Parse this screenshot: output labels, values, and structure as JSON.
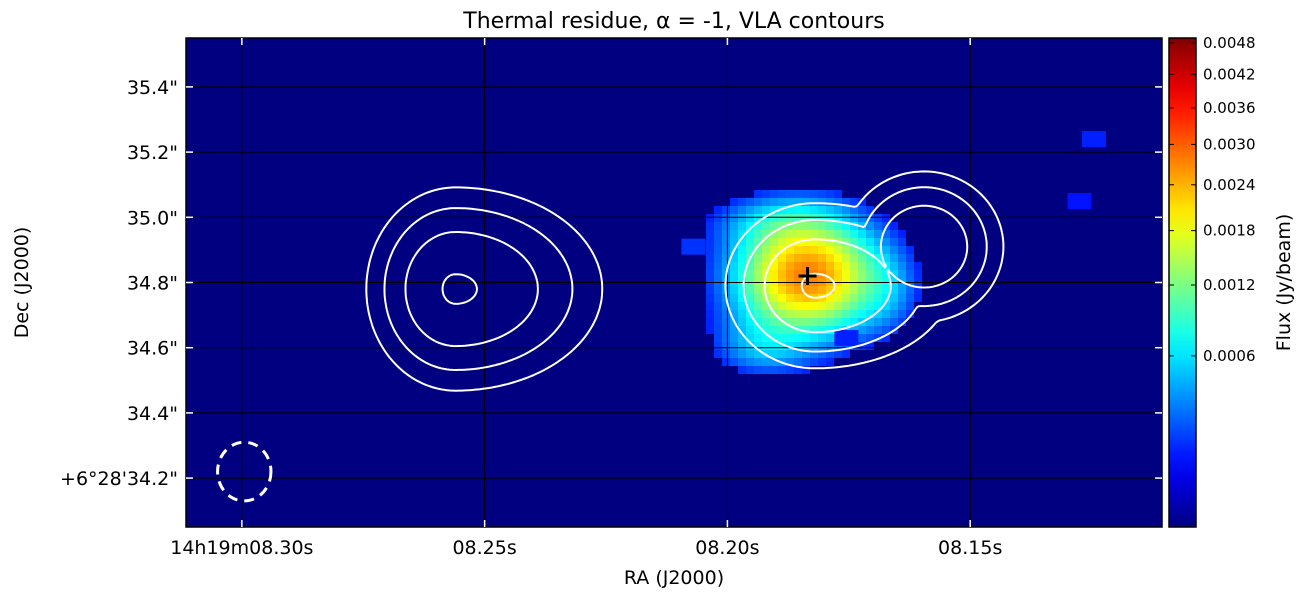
{
  "chart_data": {
    "type": "heatmap",
    "title": "Thermal residue, α = -1, VLA contours",
    "xlabel": "RA (J2000)",
    "ylabel": "Dec (J2000)",
    "x_axis": {
      "unit": "seconds of RA (14h19m)",
      "range": [
        8.3115,
        8.1105
      ],
      "tick_values": [
        8.3,
        8.25,
        8.2,
        8.15
      ],
      "tick_labels": [
        "14h19m08.30s",
        "08.25s",
        "08.20s",
        "08.15s"
      ]
    },
    "y_axis": {
      "unit": "arcsec of Dec (+6°28')",
      "range": [
        34.05,
        35.55
      ],
      "tick_values": [
        34.2,
        34.4,
        34.6,
        34.8,
        35.0,
        35.2,
        35.4
      ],
      "tick_labels": [
        "+6°28'34.2\"",
        "34.4\"",
        "34.6\"",
        "34.8\"",
        "35.0\"",
        "35.2\"",
        "35.4\""
      ]
    },
    "colorbar": {
      "label": "Flux (Jy/beam)",
      "colormap": "jet",
      "range": [
        0,
        0.0049
      ],
      "scale": "sqrt",
      "tick_values": [
        0.0006,
        0.0012,
        0.0018,
        0.0024,
        0.003,
        0.0036,
        0.0042,
        0.0048
      ],
      "tick_labels": [
        "0.0006",
        "0.0012",
        "0.0018",
        "0.0024",
        "0.0030",
        "0.0036",
        "0.0042",
        "0.0048"
      ]
    },
    "sources": [
      {
        "ra": 8.1835,
        "dec": 34.82,
        "peak_flux": 0.0028,
        "sigma_ra": 0.0085,
        "sigma_dec": 0.105
      },
      {
        "ra": 8.1895,
        "dec": 34.98,
        "peak_flux": 0.0004,
        "sigma_ra": 0.008,
        "sigma_dec": 0.05
      },
      {
        "ra": 8.1935,
        "dec": 34.63,
        "peak_flux": 0.0003,
        "sigma_ra": 0.006,
        "sigma_dec": 0.06
      },
      {
        "ra": 8.1915,
        "dec": 34.58,
        "peak_flux": 0.0002,
        "sigma_ra": 0.006,
        "sigma_dec": 0.04
      },
      {
        "ra": 8.1675,
        "dec": 34.78,
        "peak_flux": 0.0003,
        "sigma_ra": 0.004,
        "sigma_dec": 0.08
      }
    ],
    "noise_patches": [
      {
        "ra": 8.207,
        "dec": 34.91,
        "flux": 0.00015
      },
      {
        "ra": 8.1245,
        "dec": 35.24,
        "flux": 0.00012
      },
      {
        "ra": 8.1275,
        "dec": 35.05,
        "flux": 0.0001
      },
      {
        "ra": 8.1755,
        "dec": 34.63,
        "flux": 0.00012
      }
    ],
    "contours": {
      "color": "#ffffff",
      "components": [
        {
          "name": "left",
          "ra": 8.256,
          "dec": 34.78,
          "peak": 1.0,
          "sigma_ra": 0.0145,
          "sigma_dec": 0.16,
          "skew": 0.35
        },
        {
          "name": "middle",
          "ra": 8.182,
          "dec": 34.79,
          "peak": 1.0,
          "sigma_ra": 0.0135,
          "sigma_dec": 0.13,
          "skew": 0.3
        },
        {
          "name": "right",
          "ra": 8.1595,
          "dec": 34.91,
          "peak": 0.95,
          "sigma_ra": 0.0085,
          "sigma_dec": 0.12,
          "skew": 0.0
        }
      ],
      "levels": [
        0.15,
        0.3,
        0.55,
        0.96
      ]
    },
    "marker": {
      "symbol": "+",
      "ra": 8.1835,
      "dec": 34.82,
      "color": "#000000"
    },
    "beam": {
      "ra": 8.2995,
      "dec": 34.22,
      "radius_ra": 0.0055,
      "radius_dec": 0.09,
      "style": "dashed",
      "color": "#ffffff"
    },
    "grid": true
  }
}
